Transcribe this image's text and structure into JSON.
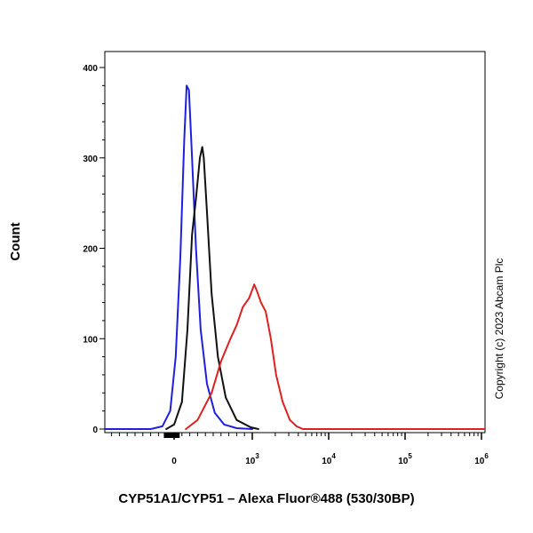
{
  "chart_data": {
    "type": "line",
    "xlabel": "CYP51A1/CYP51 – Alexa Fluor®488 (530/30BP)",
    "ylabel": "Count",
    "ylim": [
      0,
      400
    ],
    "x_scale": "biexponential",
    "y_ticks": [
      0,
      100,
      200,
      300,
      400
    ],
    "x_ticks": [
      {
        "base": "0",
        "exp": ""
      },
      {
        "base": "10",
        "exp": "3"
      },
      {
        "base": "10",
        "exp": "4"
      },
      {
        "base": "10",
        "exp": "5"
      },
      {
        "base": "10",
        "exp": "6"
      }
    ],
    "grid": false,
    "legend": "none",
    "annotation": "Copyright (c) 2023 Abcam Plc",
    "series": [
      {
        "color": "#1f1fe0",
        "x": [
          -300,
          -150,
          -50,
          20,
          80,
          130,
          160,
          190,
          230,
          280,
          340,
          420,
          520,
          640,
          800,
          1000
        ],
        "y": [
          0,
          3,
          20,
          80,
          190,
          320,
          380,
          375,
          300,
          200,
          110,
          50,
          18,
          5,
          1,
          0
        ]
      },
      {
        "color": "#111111",
        "x": [
          -100,
          0,
          100,
          170,
          230,
          280,
          330,
          360,
          380,
          420,
          480,
          560,
          660,
          800,
          980,
          1200
        ],
        "y": [
          0,
          5,
          30,
          110,
          215,
          255,
          300,
          312,
          300,
          240,
          150,
          80,
          35,
          10,
          2,
          0
        ]
      },
      {
        "color": "#e02020",
        "x": [
          150,
          300,
          480,
          600,
          720,
          800,
          880,
          960,
          1060,
          1160,
          1300,
          1500,
          1750,
          2050,
          2500,
          3100,
          3800,
          4600
        ],
        "y": [
          0,
          10,
          40,
          75,
          100,
          115,
          135,
          145,
          160,
          152,
          140,
          130,
          100,
          60,
          30,
          10,
          3,
          0
        ]
      }
    ]
  }
}
